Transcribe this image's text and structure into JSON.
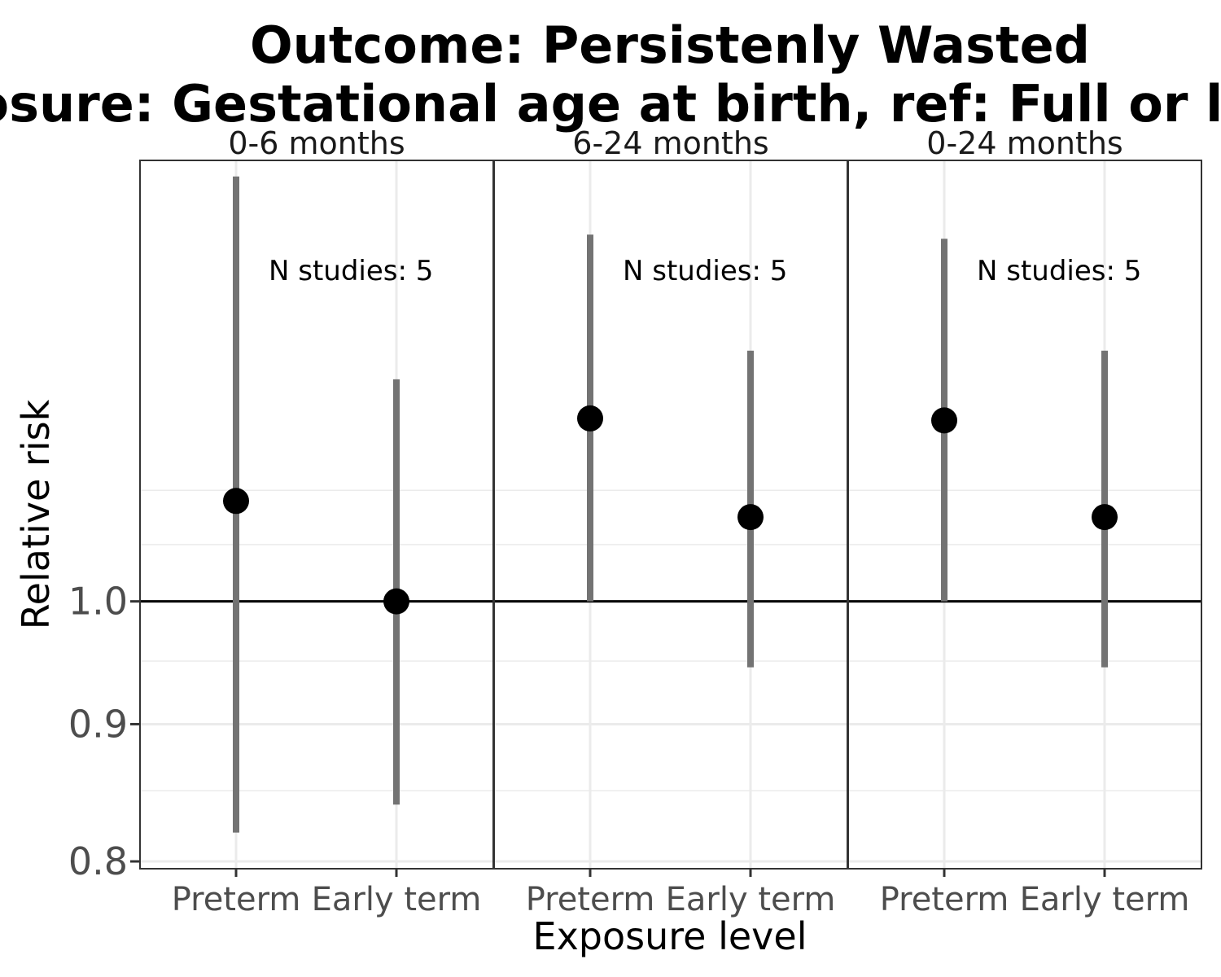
{
  "chart_data": {
    "type": "scatter",
    "title_lines": [
      "Outcome: Persistenly Wasted",
      "Exposure: Gestational age at birth, ref: Full or late term"
    ],
    "xlabel": "Exposure level",
    "ylabel": "Relative risk",
    "y_scale": "log",
    "ylim": [
      0.795,
      1.46
    ],
    "y_ticks": [
      0.8,
      0.9,
      1.0
    ],
    "y_tick_labels": [
      "0.8",
      "0.9",
      "1.0"
    ],
    "reference_line": 1.0,
    "grid": true,
    "categories": [
      "Preterm",
      "Early term"
    ],
    "panels": [
      {
        "label": "0-6 months",
        "annotation": "N studies: 5",
        "points": [
          {
            "category": "Preterm",
            "estimate": 1.09,
            "ci_low": 0.82,
            "ci_high": 1.44
          },
          {
            "category": "Early term",
            "estimate": 1.0,
            "ci_low": 0.84,
            "ci_high": 1.21
          }
        ]
      },
      {
        "label": "6-24 months",
        "annotation": "N studies: 5",
        "points": [
          {
            "category": "Preterm",
            "estimate": 1.17,
            "ci_low": 1.0,
            "ci_high": 1.37
          },
          {
            "category": "Early term",
            "estimate": 1.075,
            "ci_low": 0.945,
            "ci_high": 1.24
          }
        ]
      },
      {
        "label": "0-24 months",
        "annotation": "N studies: 5",
        "points": [
          {
            "category": "Preterm",
            "estimate": 1.168,
            "ci_low": 1.0,
            "ci_high": 1.365
          },
          {
            "category": "Early term",
            "estimate": 1.075,
            "ci_low": 0.945,
            "ci_high": 1.24
          }
        ]
      }
    ]
  }
}
